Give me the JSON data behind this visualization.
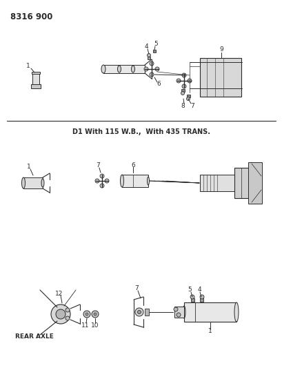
{
  "title": "8316 900",
  "background_color": "#ffffff",
  "text_color": "#2a2a2a",
  "divider_label": "D1 With 115 W.B.,  With 435 TRANS.",
  "rear_axle_label": "REAR AXLE",
  "fig_width": 4.1,
  "fig_height": 5.33,
  "dpi": 100,
  "line_color": "#2a2a2a"
}
